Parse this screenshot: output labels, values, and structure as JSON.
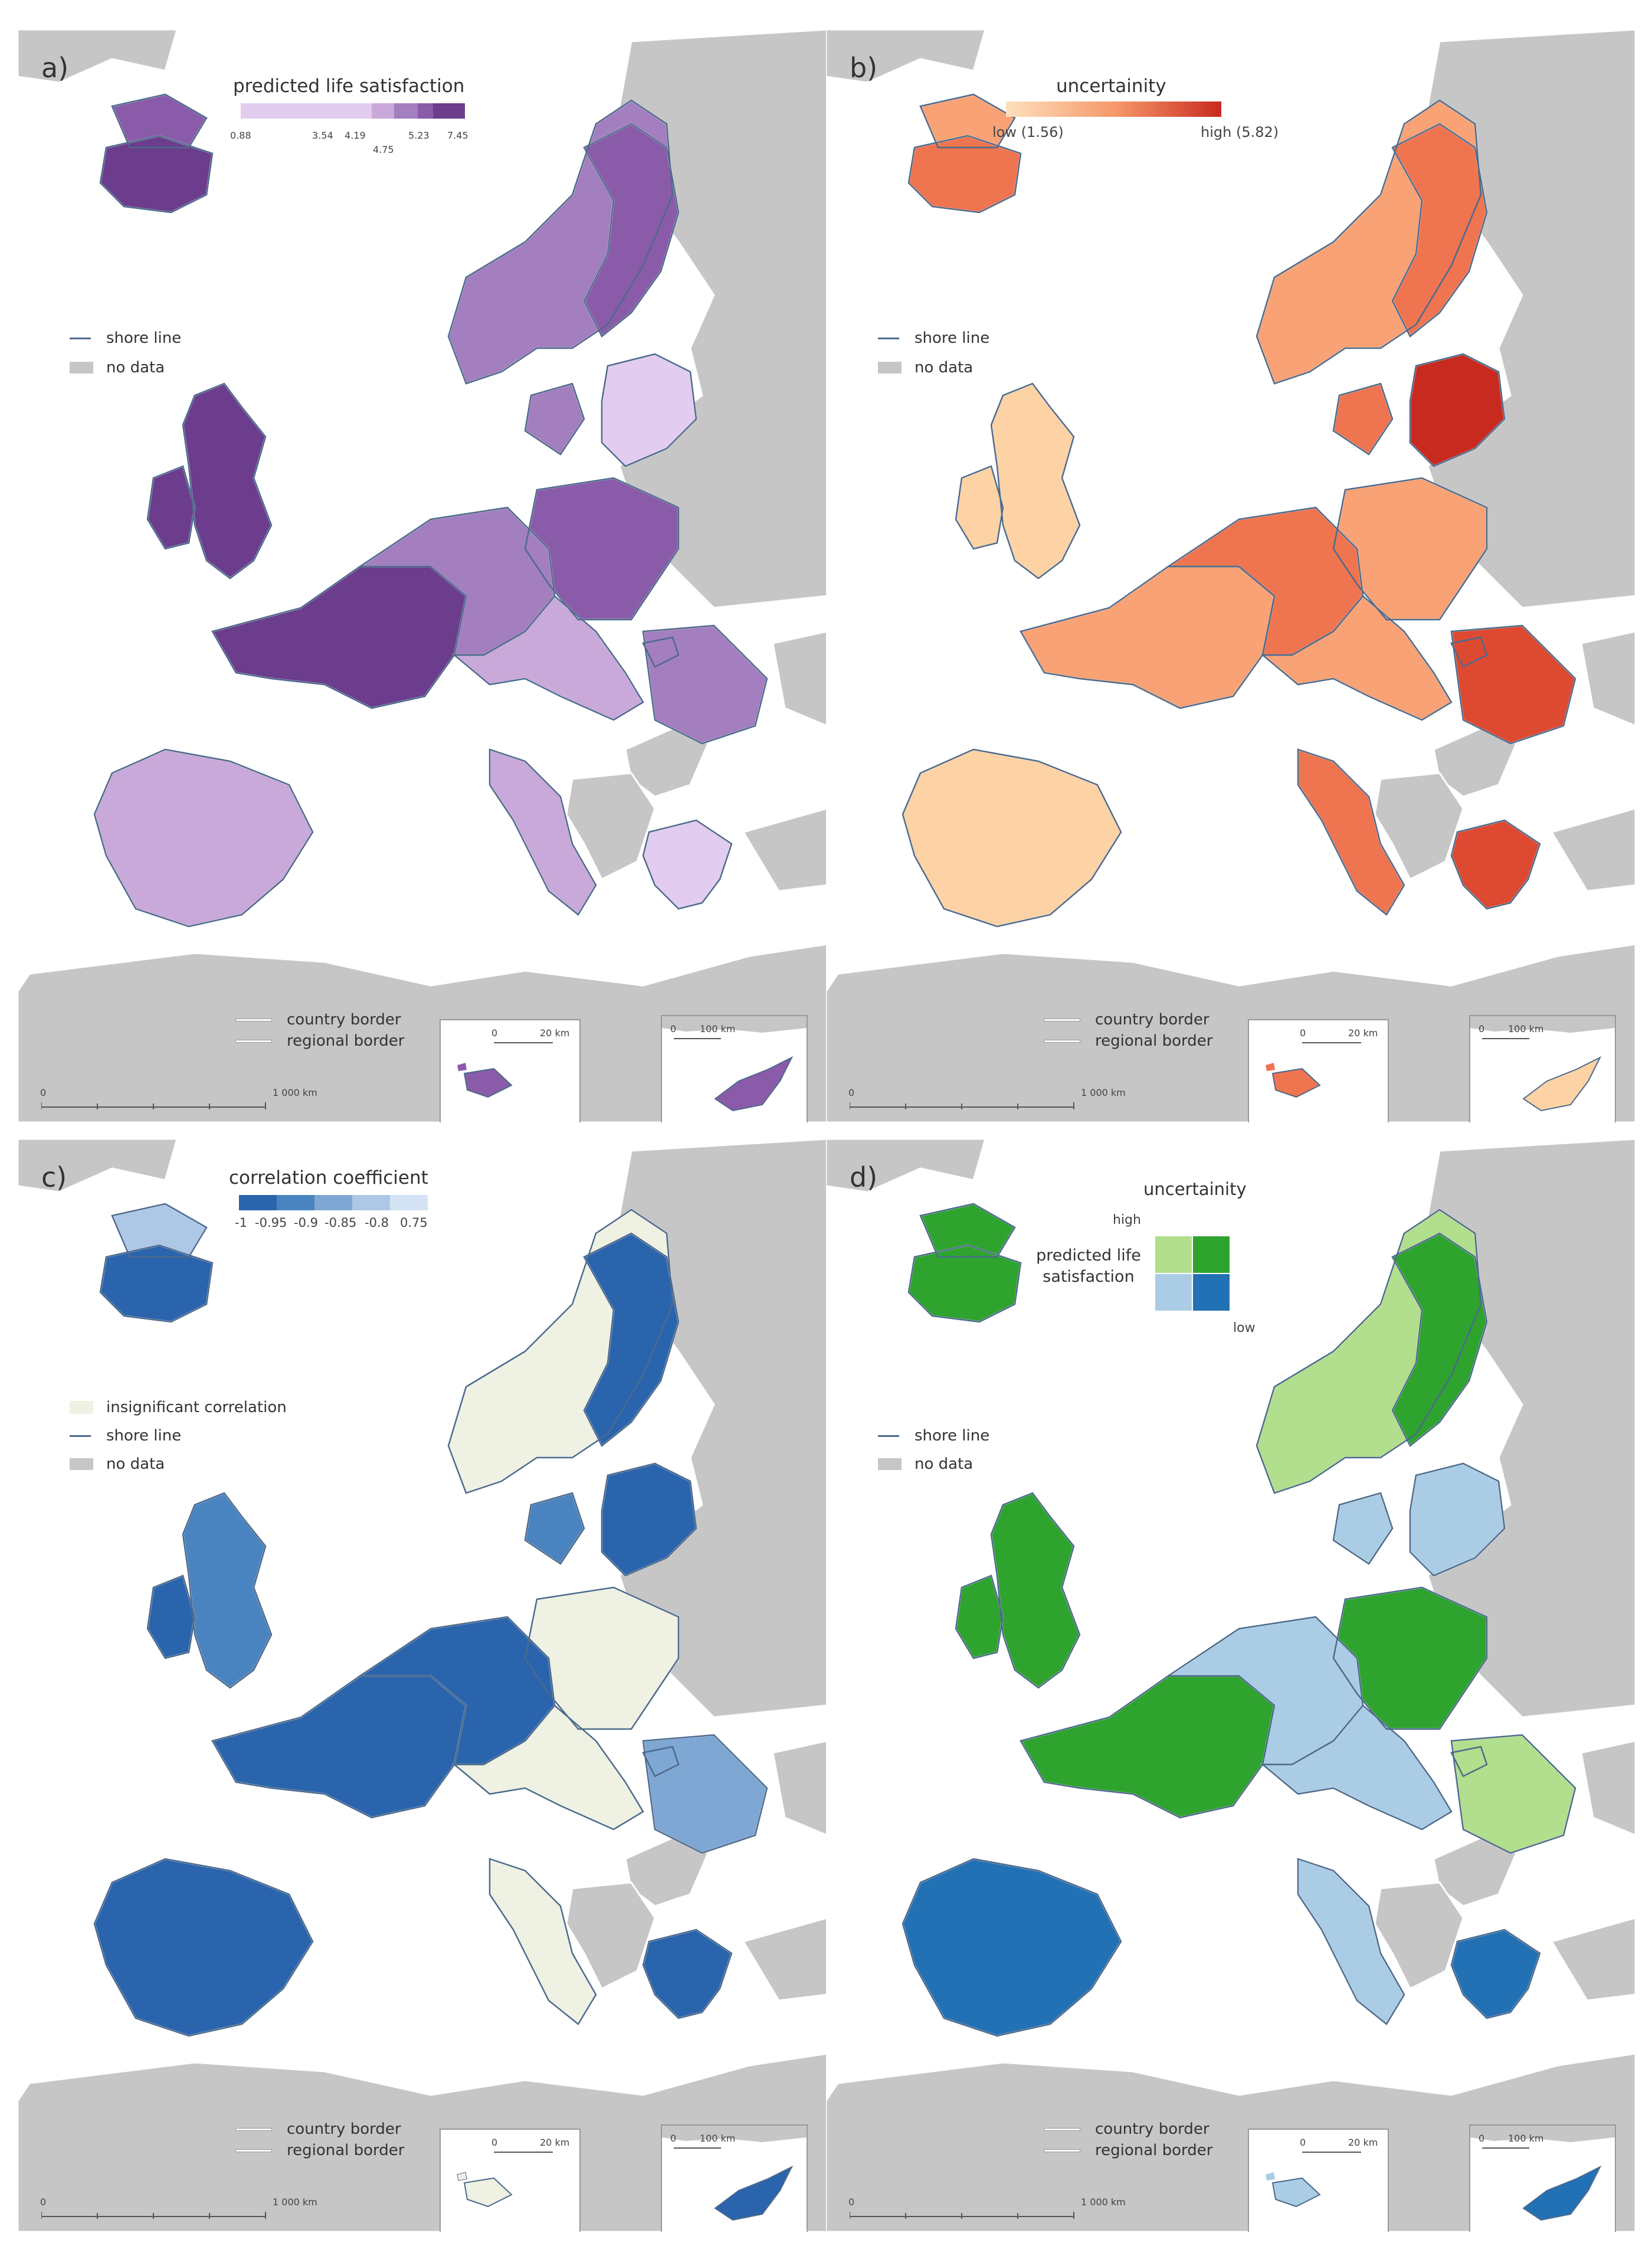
{
  "panels": [
    {
      "id": "a",
      "label": "a)",
      "legend_title": "predicted life satisfaction",
      "legend_ticks": [
        "0.88",
        "3.54",
        "4.19",
        "4.75",
        "5.23",
        "7.45"
      ],
      "colors": [
        "#e2ccef",
        "#c8a9d9",
        "#a47fbf",
        "#8a5ba8",
        "#6b3d8c"
      ],
      "items": [
        "shore line",
        "no data"
      ],
      "border_items": [
        "country border",
        "regional border"
      ],
      "scale": [
        "0",
        "1 000 km"
      ],
      "inset_scale_malta": [
        "0",
        "20 km"
      ],
      "inset_scale_cyprus": [
        "0",
        "100 km"
      ]
    },
    {
      "id": "b",
      "label": "b)",
      "legend_title": "uncertainity",
      "legend_low": "low (1.56)",
      "legend_high": "high (5.82)",
      "colors": [
        "#fdd2a5",
        "#f8a276",
        "#ef7550",
        "#dd4a31",
        "#c92a1f"
      ],
      "items": [
        "shore line",
        "no data"
      ],
      "border_items": [
        "country border",
        "regional border"
      ],
      "scale": [
        "0",
        "1 000 km"
      ],
      "inset_scale_malta": [
        "0",
        "20 km"
      ],
      "inset_scale_cyprus": [
        "0",
        "100 km"
      ]
    },
    {
      "id": "c",
      "label": "c)",
      "legend_title": "correlation coefficient",
      "legend_ticks": [
        "-1",
        "-0.95",
        "-0.9",
        "-0.85",
        "-0.8",
        "0.75"
      ],
      "colors": [
        "#2a64ac",
        "#4a84c0",
        "#7fa7d4",
        "#adc8e6",
        "#d3e3f4"
      ],
      "insignificant_color": "#eff1e3",
      "items": [
        "insignificant correlation",
        "shore line",
        "no data"
      ],
      "border_items": [
        "country border",
        "regional border"
      ],
      "scale": [
        "0",
        "1 000 km"
      ],
      "inset_scale_malta": [
        "0",
        "20 km"
      ],
      "inset_scale_cyprus": [
        "0",
        "100 km"
      ]
    },
    {
      "id": "d",
      "label": "d)",
      "legend_title": "uncertainity",
      "legend_high": "high",
      "legend_low": "low",
      "legend_axis": "predicted life satisfaction",
      "colors": [
        "#b1df8d",
        "#2ea32e",
        "#aacde5",
        "#2271b4"
      ],
      "items": [
        "shore line",
        "no data"
      ],
      "border_items": [
        "country border",
        "regional border"
      ],
      "scale": [
        "0",
        "1 000 km"
      ],
      "inset_scale_malta": [
        "0",
        "20 km"
      ],
      "inset_scale_cyprus": [
        "0",
        "100 km"
      ]
    }
  ],
  "colors": {
    "nodata": "#c6c6c6",
    "sea": "#ffffff",
    "shore": "#4d6a8c",
    "border": "#ffffff"
  }
}
